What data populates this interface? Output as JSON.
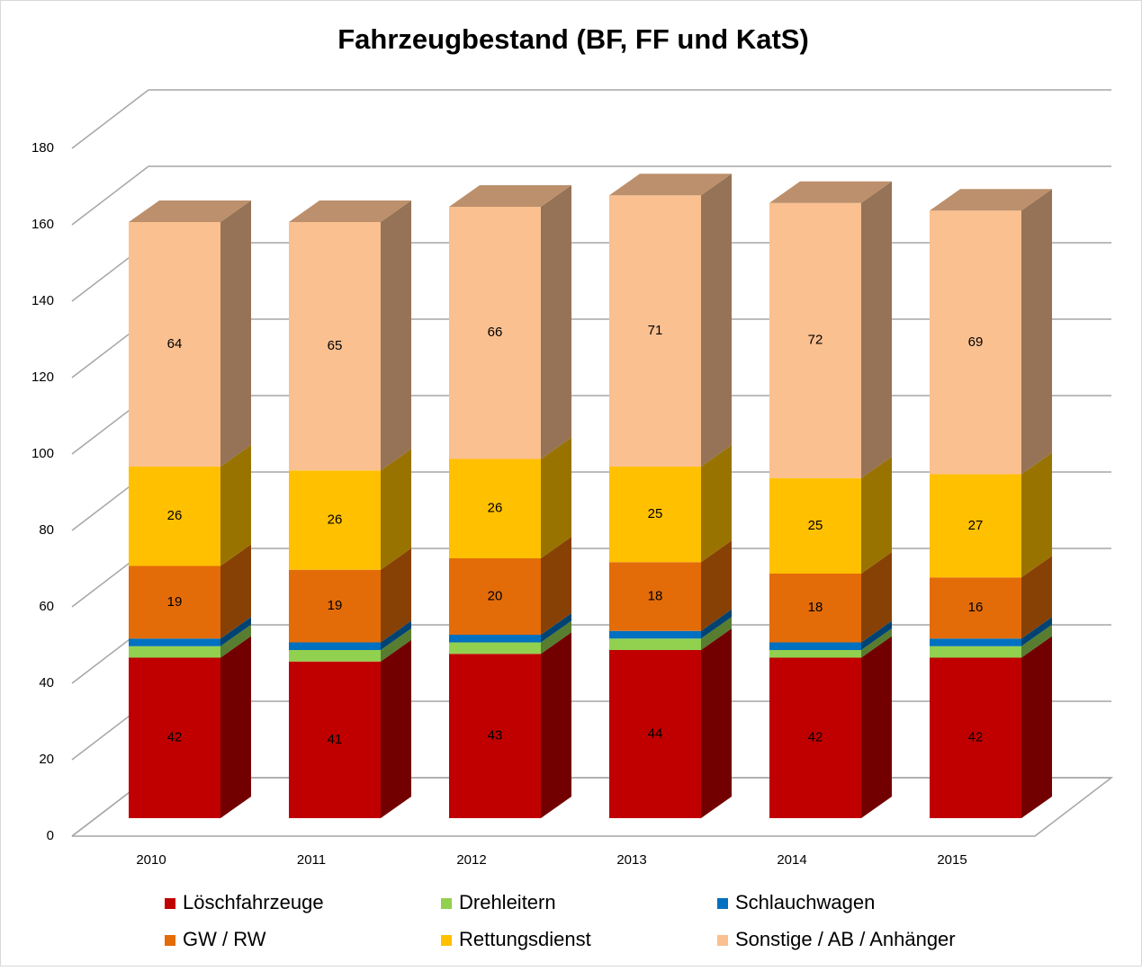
{
  "chart_data": {
    "type": "bar3d_stacked",
    "title": "Fahrzeugbestand (BF, FF und KatS)",
    "categories": [
      "2010",
      "2011",
      "2012",
      "2013",
      "2014",
      "2015"
    ],
    "series": [
      {
        "name": "Löschfahrzeuge",
        "color": "#c00000",
        "values": [
          42,
          41,
          43,
          44,
          42,
          42
        ],
        "data_labels": true
      },
      {
        "name": "Drehleitern",
        "color": "#92d050",
        "values": [
          3,
          3,
          3,
          3,
          2,
          3
        ],
        "data_labels": false
      },
      {
        "name": "Schlauchwagen",
        "color": "#0070c0",
        "values": [
          2,
          2,
          2,
          2,
          2,
          2
        ],
        "data_labels": false
      },
      {
        "name": "GW / RW",
        "color": "#e36c09",
        "values": [
          19,
          19,
          20,
          18,
          18,
          16
        ],
        "data_labels": true
      },
      {
        "name": "Rettungsdienst",
        "color": "#ffc000",
        "values": [
          26,
          26,
          26,
          25,
          25,
          27
        ],
        "data_labels": true
      },
      {
        "name": "Sonstige / AB / Anhänger",
        "color": "#fac090",
        "values": [
          64,
          65,
          66,
          71,
          72,
          69
        ],
        "data_labels": true
      }
    ],
    "ylim": [
      0,
      180
    ],
    "yticks": [
      0,
      20,
      40,
      60,
      80,
      100,
      120,
      140,
      160,
      180
    ],
    "grid": true,
    "legend": "bottom"
  }
}
